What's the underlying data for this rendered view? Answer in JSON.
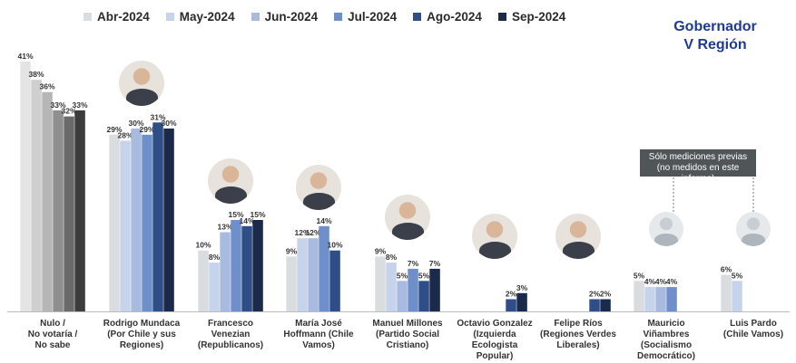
{
  "title_lines": [
    "Gobernador",
    "V Región"
  ],
  "note_lines": [
    "Sólo mediciones previas",
    "(no medidos en este informe)"
  ],
  "colors": [
    "#dadde0",
    "#c7d3ea",
    "#a8bbdf",
    "#6f8fcb",
    "#2f4d86",
    "#1b2a4a"
  ],
  "gray_colors": [
    "#e4e4e4",
    "#cfcfcf",
    "#b6b6b6",
    "#8f8f8f",
    "#6a6a6a",
    "#3c3c3c"
  ],
  "chart_data": {
    "type": "bar",
    "series_names": [
      "Abr-2024",
      "May-2024",
      "Jun-2024",
      "Jul-2024",
      "Ago-2024",
      "Sep-2024"
    ],
    "categories": [
      {
        "lines": [
          "Nulo /",
          "No votaría /",
          "No sabe"
        ],
        "values": [
          41,
          38,
          36,
          33,
          32,
          33
        ],
        "style": "gray",
        "photo": "none"
      },
      {
        "lines": [
          "Rodrigo Mundaca",
          "(Por Chile y sus",
          "Regiones)"
        ],
        "values": [
          29,
          28,
          30,
          29,
          31,
          30
        ],
        "style": "blue",
        "photo": "color"
      },
      {
        "lines": [
          "Francesco",
          "Venezian",
          "(Republicanos)"
        ],
        "values": [
          10,
          8,
          13,
          15,
          14,
          15
        ],
        "style": "blue",
        "photo": "color"
      },
      {
        "lines": [
          "María José",
          "Hoffmann (Chile",
          "Vamos)"
        ],
        "values": [
          9,
          12,
          12,
          14,
          10,
          null
        ],
        "style": "blue",
        "photo": "color"
      },
      {
        "lines": [
          "Manuel Millones",
          "(Partido Social",
          "Cristiano)"
        ],
        "values": [
          9,
          8,
          5,
          7,
          5,
          7
        ],
        "style": "blue",
        "photo": "color"
      },
      {
        "lines": [
          "Octavio Gonzalez",
          "(Izquierda",
          "Ecologista",
          "Popular)"
        ],
        "values": [
          null,
          null,
          null,
          null,
          2,
          3
        ],
        "style": "blue",
        "photo": "color"
      },
      {
        "lines": [
          "Felipe Ríos",
          "(Regiones Verdes",
          "Liberales)"
        ],
        "values": [
          null,
          null,
          null,
          null,
          2,
          2
        ],
        "style": "blue",
        "photo": "color"
      },
      {
        "lines": [
          "Mauricio",
          "Viñambres",
          "(Socialismo",
          "Democrático)"
        ],
        "values": [
          5,
          4,
          4,
          4,
          null,
          null
        ],
        "style": "blue",
        "photo": "gray"
      },
      {
        "lines": [
          "Luis Pardo",
          "(Chile Vamos)"
        ],
        "values": [
          6,
          5,
          null,
          null,
          null,
          null
        ],
        "style": "blue",
        "photo": "gray"
      }
    ],
    "ylim": [
      0,
      45
    ],
    "value_format": "{v}%"
  }
}
